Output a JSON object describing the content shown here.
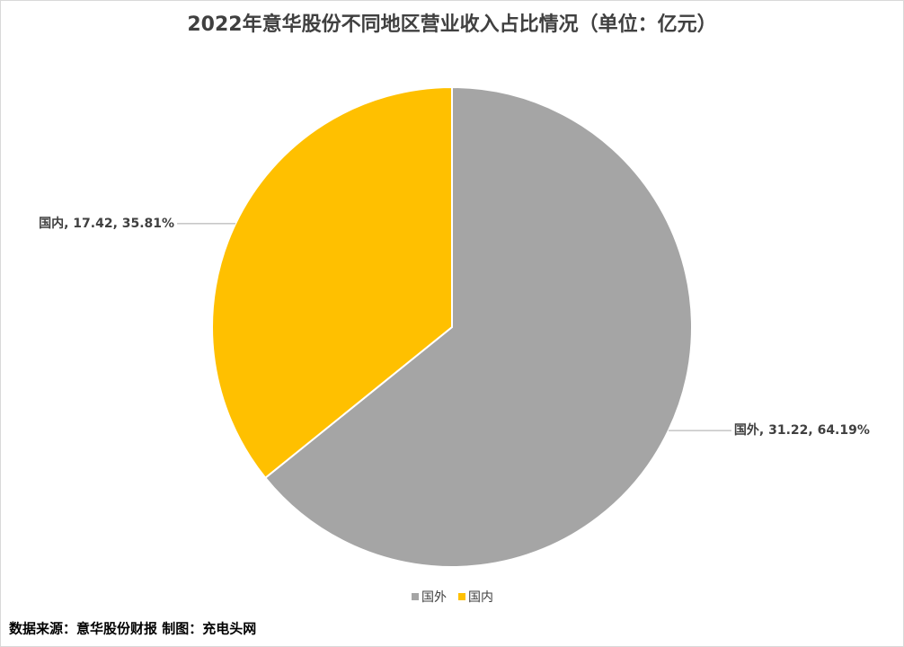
{
  "chart_data": {
    "type": "pie",
    "title": "2022年意华股份不同地区营业收入占比情况（单位：亿元）",
    "categories": [
      "国外",
      "国内"
    ],
    "values": [
      31.22,
      17.42
    ],
    "value_labels": [
      "国外, 31.22, 64.19%",
      "国内, 17.42, 35.81%"
    ],
    "colors": [
      "#a5a5a5",
      "#ffc000"
    ],
    "legend": "bottom",
    "source": "数据来源：意华股份财报  制图：充电头网"
  }
}
